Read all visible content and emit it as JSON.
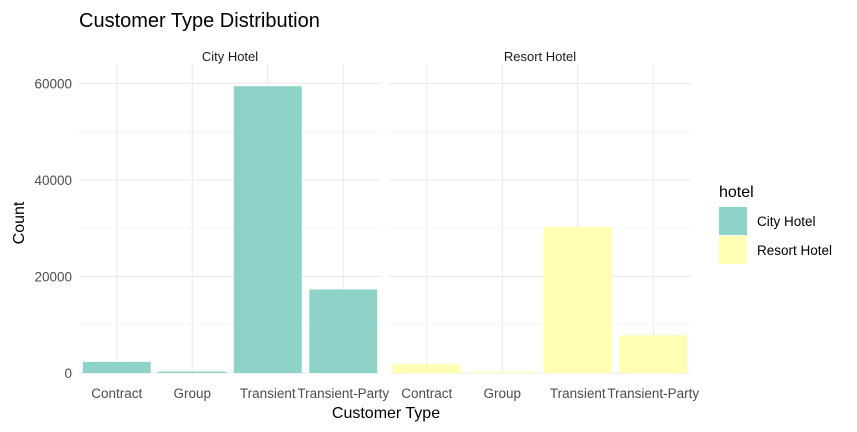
{
  "chart_data": {
    "type": "bar",
    "title": "Customer Type Distribution",
    "xlabel": "Customer Type",
    "ylabel": "Count",
    "ylim": [
      0,
      64000
    ],
    "yticks": [
      0,
      20000,
      40000,
      60000
    ],
    "ytick_labels": [
      "0",
      "20000",
      "40000",
      "60000"
    ],
    "categories": [
      "Contract",
      "Group",
      "Transient",
      "Transient-Party"
    ],
    "grid": true,
    "facets": [
      {
        "name": "City Hotel",
        "color": "#8dd3c7",
        "values": [
          2300,
          300,
          59400,
          17300
        ]
      },
      {
        "name": "Resort Hotel",
        "color": "#ffffb3",
        "values": [
          1800,
          250,
          30200,
          7800
        ]
      }
    ],
    "legend": {
      "title": "hotel",
      "placement": "right",
      "entries": [
        {
          "label": "City Hotel",
          "color": "#8dd3c7"
        },
        {
          "label": "Resort Hotel",
          "color": "#ffffb3"
        }
      ]
    }
  }
}
